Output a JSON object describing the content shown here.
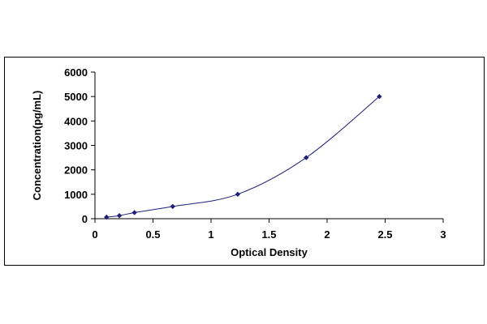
{
  "chart_data": {
    "type": "scatter",
    "xlabel": "Optical Density",
    "ylabel": "Concentration(pg/mL)",
    "xlim": [
      0,
      3
    ],
    "ylim": [
      0,
      6000
    ],
    "x_ticks": [
      "0",
      "0.5",
      "1",
      "1.5",
      "2",
      "2.5",
      "3"
    ],
    "y_ticks": [
      "0",
      "1000",
      "2000",
      "3000",
      "4000",
      "5000",
      "6000"
    ],
    "grid": false,
    "legend": "none",
    "trendline": "smooth curve through points",
    "colors": {
      "marker": "#1f1f7a",
      "curve": "#1f1f7a",
      "axis": "#000000"
    },
    "series": [
      {
        "x": [
          0.1,
          0.21,
          0.34,
          0.67,
          1.23,
          1.82,
          2.45
        ],
        "y": [
          62.5,
          125,
          250,
          500,
          1000,
          2500,
          5000
        ]
      }
    ]
  }
}
